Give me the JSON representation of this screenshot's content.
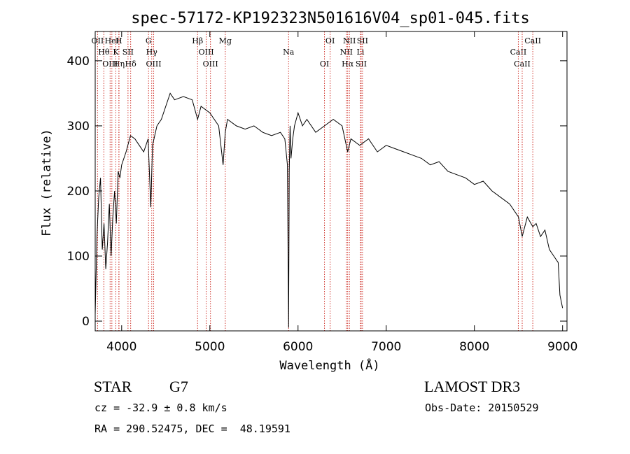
{
  "header": {
    "title": "spec-57172-KP192323N501616V04_sp01-045.fits"
  },
  "chart_data": {
    "type": "line",
    "title": "spec-57172-KP192323N501616V04_sp01-045.fits",
    "xlabel": "Wavelength (Å)",
    "ylabel": "Flux (relative)",
    "xlim": [
      3700,
      9050
    ],
    "ylim": [
      -15,
      445
    ],
    "xticks": [
      4000,
      5000,
      6000,
      7000,
      8000,
      9000
    ],
    "yticks": [
      0,
      100,
      200,
      300,
      400
    ],
    "series": [
      {
        "name": "flux",
        "x": [
          3700,
          3720,
          3740,
          3760,
          3780,
          3800,
          3820,
          3840,
          3860,
          3880,
          3900,
          3920,
          3940,
          3960,
          3980,
          4000,
          4050,
          4100,
          4150,
          4200,
          4250,
          4300,
          4330,
          4350,
          4400,
          4450,
          4500,
          4550,
          4600,
          4700,
          4800,
          4861,
          4900,
          5000,
          5100,
          5150,
          5175,
          5200,
          5300,
          5400,
          5500,
          5600,
          5700,
          5800,
          5850,
          5880,
          5893,
          5900,
          5910,
          5920,
          5940,
          5960,
          6000,
          6050,
          6100,
          6200,
          6300,
          6400,
          6500,
          6563,
          6600,
          6700,
          6800,
          6900,
          7000,
          7100,
          7200,
          7300,
          7400,
          7500,
          7600,
          7700,
          7800,
          7900,
          8000,
          8100,
          8200,
          8300,
          8400,
          8500,
          8542,
          8600,
          8662,
          8700,
          8750,
          8800,
          8850,
          8900,
          8950,
          8970,
          9000
        ],
        "y": [
          10,
          130,
          190,
          220,
          110,
          150,
          80,
          120,
          180,
          100,
          160,
          200,
          150,
          230,
          220,
          240,
          260,
          285,
          280,
          270,
          260,
          280,
          175,
          270,
          300,
          310,
          330,
          350,
          340,
          345,
          340,
          310,
          330,
          320,
          300,
          240,
          290,
          310,
          300,
          295,
          300,
          290,
          285,
          290,
          280,
          240,
          -10,
          230,
          300,
          250,
          280,
          300,
          320,
          300,
          310,
          290,
          300,
          310,
          300,
          260,
          280,
          270,
          280,
          260,
          270,
          265,
          260,
          255,
          250,
          240,
          245,
          230,
          225,
          220,
          210,
          215,
          200,
          190,
          180,
          160,
          130,
          160,
          145,
          150,
          130,
          140,
          110,
          100,
          90,
          40,
          20
        ]
      }
    ],
    "lines": [
      {
        "label": "OII",
        "wavelength": 3727
      },
      {
        "label": "Hθ",
        "wavelength": 3798
      },
      {
        "label": "OIII",
        "wavelength": 3869
      },
      {
        "label": "HeI",
        "wavelength": 3889
      },
      {
        "label": "K",
        "wavelength": 3934
      },
      {
        "label": "Hη",
        "wavelength": 3970
      },
      {
        "label": "H",
        "wavelength": 3968
      },
      {
        "label": "SII",
        "wavelength": 4072
      },
      {
        "label": "Hδ",
        "wavelength": 4102
      },
      {
        "label": "G",
        "wavelength": 4305
      },
      {
        "label": "Hγ",
        "wavelength": 4341
      },
      {
        "label": "OIII",
        "wavelength": 4363
      },
      {
        "label": "Hβ",
        "wavelength": 4861
      },
      {
        "label": "OIII",
        "wavelength": 4959
      },
      {
        "label": "OIII",
        "wavelength": 5007
      },
      {
        "label": "Mg",
        "wavelength": 5175
      },
      {
        "label": "Na",
        "wavelength": 5893
      },
      {
        "label": "OI",
        "wavelength": 6300
      },
      {
        "label": "OI",
        "wavelength": 6364
      },
      {
        "label": "NII",
        "wavelength": 6548
      },
      {
        "label": "Hα",
        "wavelength": 6563
      },
      {
        "label": "NII",
        "wavelength": 6583
      },
      {
        "label": "Li",
        "wavelength": 6708
      },
      {
        "label": "SII",
        "wavelength": 6716
      },
      {
        "label": "SII",
        "wavelength": 6731
      },
      {
        "label": "CaII",
        "wavelength": 8498
      },
      {
        "label": "CaII",
        "wavelength": 8542
      },
      {
        "label": "CaII",
        "wavelength": 8662
      }
    ]
  },
  "info": {
    "object_class": "STAR",
    "subclass": "G7",
    "survey": "LAMOST DR3",
    "cz": "cz = -32.9 ± 0.8 km/s",
    "obs_date": "Obs-Date: 20150529",
    "coords": "RA = 290.52475, DEC =  48.19591"
  },
  "colors": {
    "line_marker": "#d0342c",
    "spectrum": "#000000"
  }
}
